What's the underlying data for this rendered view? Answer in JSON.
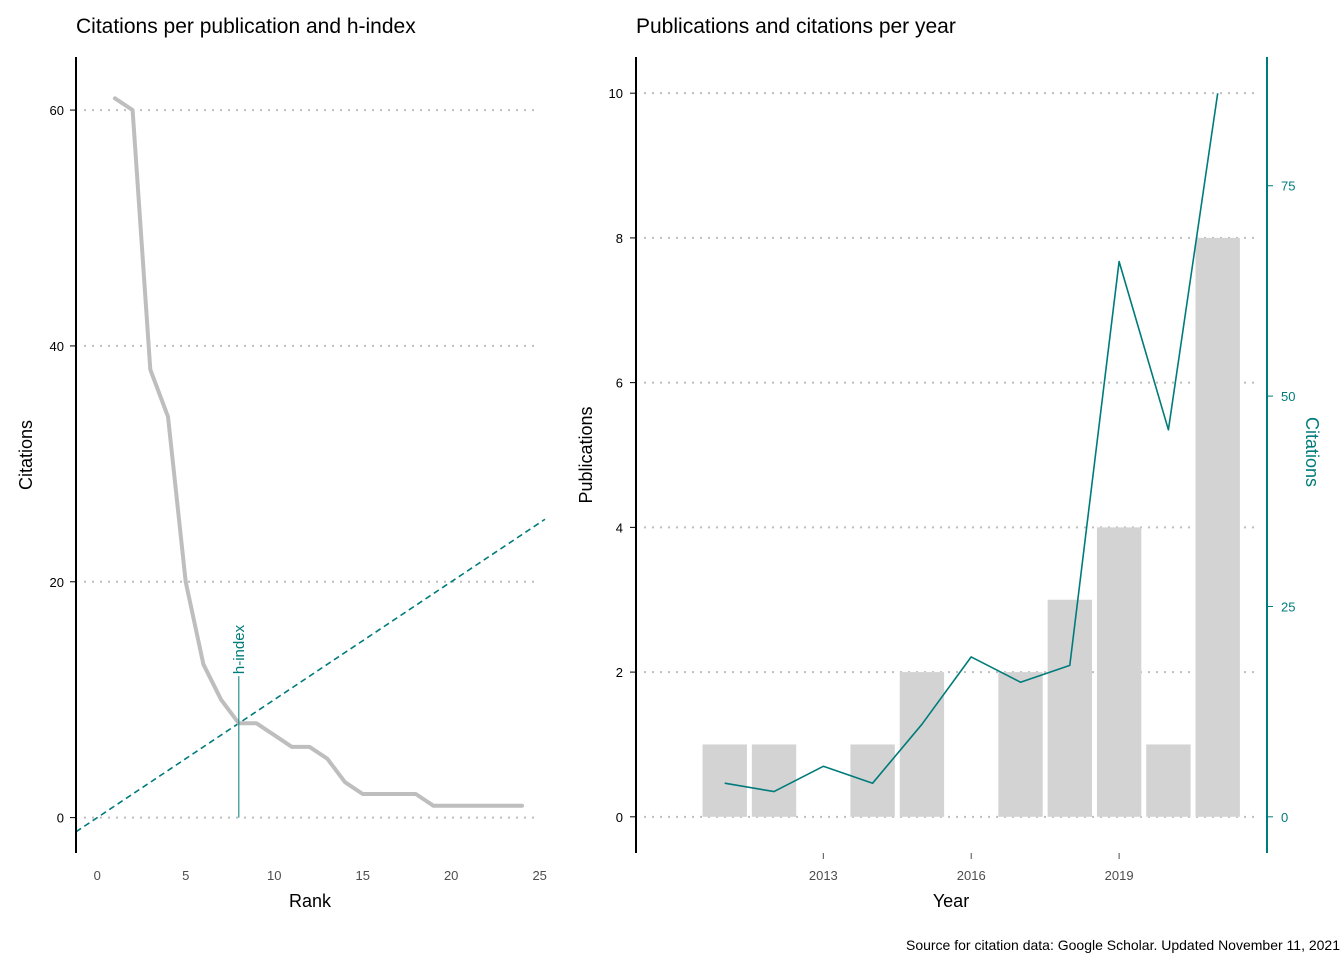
{
  "caption": "Source for citation data: Google Scholar. Updated November 11, 2021",
  "colors": {
    "accent": "#007b7b",
    "line_grey": "#bebebe",
    "bar_grey": "#d3d3d3",
    "grid": "#bebebe",
    "axis": "#000000"
  },
  "chart_data": [
    {
      "type": "line",
      "title": "Citations per publication and h-index",
      "xlabel": "Rank",
      "ylabel": "Citations",
      "xlim": [
        -1.2,
        25.3
      ],
      "ylim": [
        -3,
        64.5
      ],
      "xticks": [
        0,
        5,
        10,
        15,
        20,
        25
      ],
      "yticks": [
        0,
        20,
        40,
        60
      ],
      "grid": "horizontal dotted",
      "series": [
        {
          "values_x": [
            1,
            2,
            3,
            4,
            5,
            6,
            7,
            8,
            9,
            10,
            11,
            12,
            13,
            14,
            15,
            16,
            17,
            18,
            19,
            20,
            21,
            22,
            23,
            24
          ],
          "values_y": [
            61,
            60,
            38,
            34,
            20,
            13,
            10,
            8,
            8,
            7,
            6,
            6,
            5,
            3,
            2,
            2,
            2,
            2,
            1,
            1,
            1,
            1,
            1,
            1
          ]
        }
      ],
      "reference_line": {
        "type": "y=x",
        "style": "dashed"
      },
      "h_index": {
        "value": 8,
        "label": "h-index"
      }
    },
    {
      "type": "bar",
      "title": "Publications and citations per year",
      "xlabel": "Year",
      "ylabel": "Publications",
      "y2label": "Citations",
      "xlim": [
        2009.2,
        2022.0
      ],
      "ylim": [
        -0.5,
        10.5
      ],
      "y2lim": [
        -4.3,
        90.3
      ],
      "xticks": [
        2013,
        2016,
        2019
      ],
      "yticks": [
        0,
        2,
        4,
        6,
        8,
        10
      ],
      "y2ticks": [
        0,
        25,
        50,
        75
      ],
      "grid": "horizontal dotted",
      "categories": [
        2011,
        2012,
        2013,
        2014,
        2015,
        2016,
        2017,
        2018,
        2019,
        2020,
        2021
      ],
      "series": [
        {
          "name": "Publications",
          "type": "bar",
          "values": [
            1,
            1,
            0,
            1,
            2,
            0,
            2,
            3,
            4,
            1,
            8
          ]
        },
        {
          "name": "Citations",
          "type": "line",
          "axis": "secondary",
          "values": [
            4,
            3,
            6,
            4,
            11,
            19,
            16,
            18,
            66,
            46,
            86
          ]
        }
      ]
    }
  ]
}
